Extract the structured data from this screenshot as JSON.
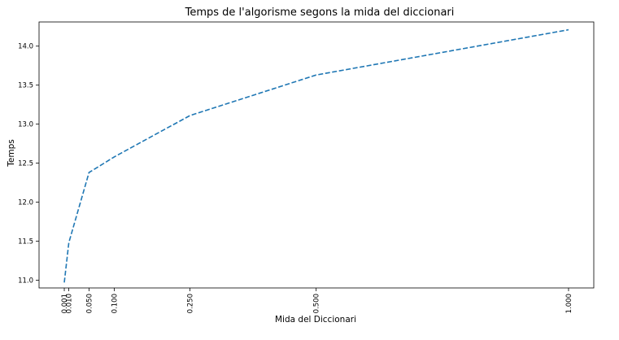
{
  "chart_data": {
    "type": "line",
    "title": "Temps de l'algorisme segons la mida del diccionari",
    "xlabel": "Mida del Diccionari",
    "ylabel": "Temps",
    "series": [
      {
        "x": [
          0.001,
          0.01,
          0.05,
          0.1,
          0.25,
          0.5,
          1.0
        ],
        "y": [
          10.97,
          11.48,
          12.38,
          12.58,
          13.11,
          13.63,
          14.21
        ],
        "color": "#1f77b4",
        "line_style": "dashed"
      }
    ],
    "xticks": [
      0.001,
      0.01,
      0.05,
      0.1,
      0.25,
      0.5,
      1.0
    ],
    "xtick_labels": [
      "0.001",
      "0.010",
      "0.050",
      "0.100",
      "0.250",
      "0.500",
      "1.000"
    ],
    "xtick_rotation": "vertical",
    "yticks": [
      11.0,
      11.5,
      12.0,
      12.5,
      13.0,
      13.5,
      14.0
    ],
    "ytick_labels": [
      "11.0",
      "11.5",
      "12.0",
      "12.5",
      "13.0",
      "13.5",
      "14.0"
    ],
    "xlim": [
      -0.049,
      1.05
    ],
    "ylim": [
      10.9,
      14.31
    ],
    "grid": false,
    "legend": "none"
  }
}
